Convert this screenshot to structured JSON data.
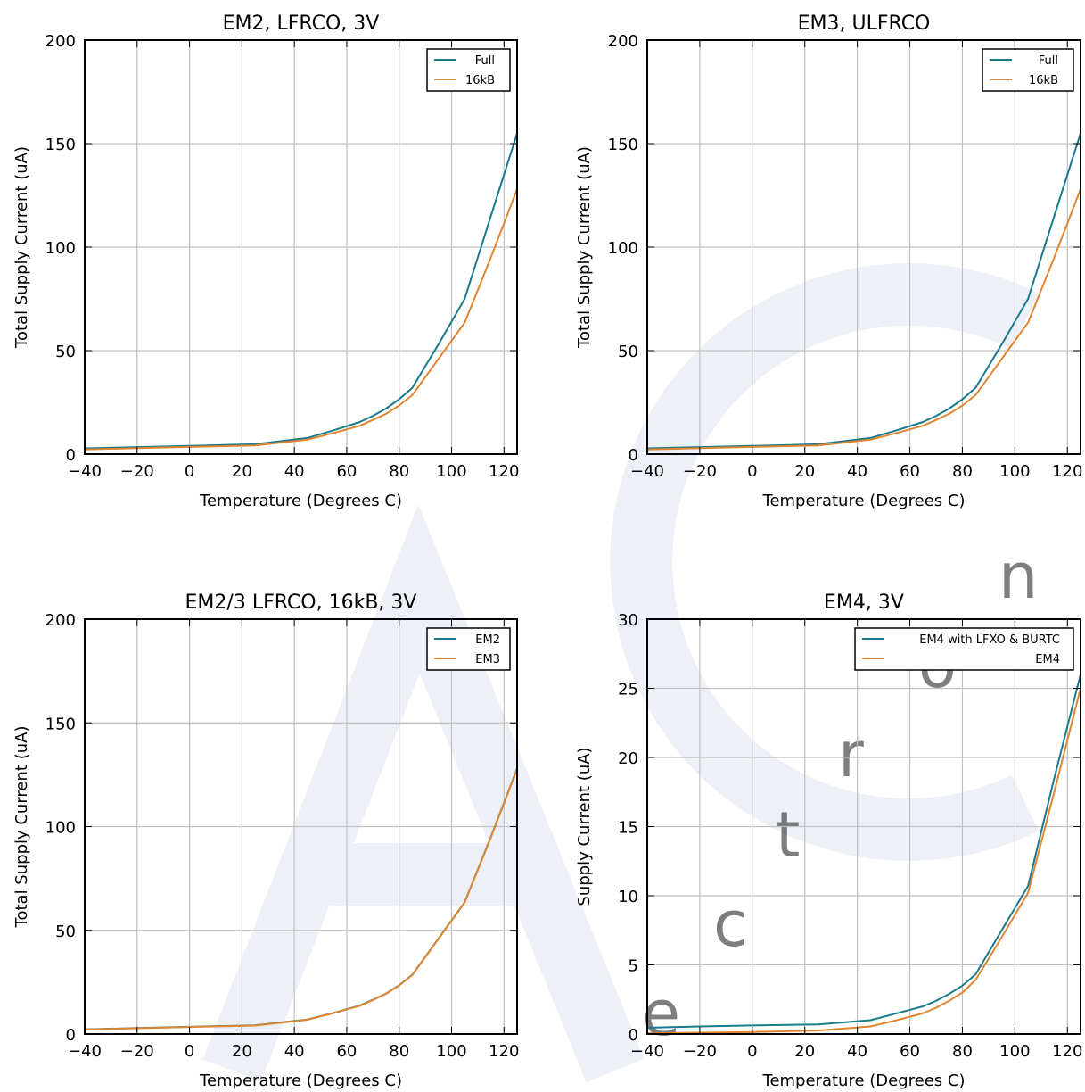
{
  "colors": {
    "series_a": "#1a7a8c",
    "series_b": "#e08530",
    "grid": "#bfbfbf",
    "axes": "#000000"
  },
  "chart_data": [
    {
      "type": "line",
      "title": "EM2, LFRCO, 3V",
      "xlabel": "Temperature (Degrees C)",
      "ylabel": "Total Supply Current (uA)",
      "xlim": [
        -40,
        125
      ],
      "ylim": [
        0,
        200
      ],
      "xticks": [
        -40,
        -20,
        0,
        20,
        40,
        60,
        80,
        100,
        120
      ],
      "yticks": [
        0,
        50,
        100,
        150,
        200
      ],
      "xtick_labels": [
        "−40",
        "−20",
        "0",
        "20",
        "40",
        "60",
        "80",
        "100",
        "120"
      ],
      "ytick_labels": [
        "0",
        "50",
        "100",
        "150",
        "200"
      ],
      "grid": true,
      "legend": "top-right",
      "series": [
        {
          "name": "Full",
          "color": "#1a7a8c",
          "x": [
            -40,
            -20,
            0,
            25,
            45,
            55,
            65,
            70,
            75,
            80,
            85,
            95,
            105,
            115,
            125
          ],
          "y": [
            2.8,
            3.4,
            4.0,
            4.8,
            7.8,
            11.5,
            15.5,
            18.5,
            22.0,
            26.5,
            32.0,
            53.0,
            75.0,
            115.0,
            155.0
          ]
        },
        {
          "name": "16kB",
          "color": "#e08530",
          "x": [
            -40,
            -20,
            0,
            25,
            45,
            55,
            65,
            70,
            75,
            80,
            85,
            95,
            105,
            115,
            125
          ],
          "y": [
            2.3,
            2.9,
            3.5,
            4.2,
            7.0,
            10.2,
            13.7,
            16.5,
            19.5,
            23.5,
            28.5,
            46.0,
            63.5,
            95.0,
            128.0
          ]
        }
      ]
    },
    {
      "type": "line",
      "title": "EM3, ULFRCO",
      "xlabel": "Temperature (Degrees C)",
      "ylabel": "Total Supply Current (uA)",
      "xlim": [
        -40,
        125
      ],
      "ylim": [
        0,
        200
      ],
      "xticks": [
        -40,
        -20,
        0,
        20,
        40,
        60,
        80,
        100,
        120
      ],
      "yticks": [
        0,
        50,
        100,
        150,
        200
      ],
      "xtick_labels": [
        "−40",
        "−20",
        "0",
        "20",
        "40",
        "60",
        "80",
        "100",
        "120"
      ],
      "ytick_labels": [
        "0",
        "50",
        "100",
        "150",
        "200"
      ],
      "grid": true,
      "legend": "top-right",
      "series": [
        {
          "name": "Full",
          "color": "#1a7a8c",
          "x": [
            -40,
            -20,
            0,
            25,
            45,
            55,
            65,
            70,
            75,
            80,
            85,
            95,
            105,
            115,
            125
          ],
          "y": [
            2.8,
            3.4,
            4.0,
            4.8,
            7.8,
            11.5,
            15.5,
            18.5,
            22.0,
            26.5,
            32.0,
            53.0,
            75.0,
            115.0,
            155.0
          ]
        },
        {
          "name": "16kB",
          "color": "#e08530",
          "x": [
            -40,
            -20,
            0,
            25,
            45,
            55,
            65,
            70,
            75,
            80,
            85,
            95,
            105,
            115,
            125
          ],
          "y": [
            2.3,
            2.9,
            3.5,
            4.2,
            7.0,
            10.2,
            13.7,
            16.5,
            19.5,
            23.5,
            28.5,
            46.0,
            63.5,
            95.0,
            128.0
          ]
        }
      ]
    },
    {
      "type": "line",
      "title": "EM2/3 LFRCO, 16kB, 3V",
      "xlabel": "Temperature (Degrees C)",
      "ylabel": "Total Supply Current (uA)",
      "xlim": [
        -40,
        125
      ],
      "ylim": [
        0,
        200
      ],
      "xticks": [
        -40,
        -20,
        0,
        20,
        40,
        60,
        80,
        100,
        120
      ],
      "yticks": [
        0,
        50,
        100,
        150,
        200
      ],
      "xtick_labels": [
        "−40",
        "−20",
        "0",
        "20",
        "40",
        "60",
        "80",
        "100",
        "120"
      ],
      "ytick_labels": [
        "0",
        "50",
        "100",
        "150",
        "200"
      ],
      "grid": true,
      "legend": "top-right",
      "series": [
        {
          "name": "EM2",
          "color": "#1a7a8c",
          "x": [
            -40,
            -20,
            0,
            25,
            45,
            55,
            65,
            70,
            75,
            80,
            85,
            95,
            105,
            115,
            125
          ],
          "y": [
            2.3,
            2.9,
            3.5,
            4.2,
            7.0,
            10.2,
            13.7,
            16.5,
            19.5,
            23.5,
            28.5,
            46.0,
            63.5,
            95.0,
            128.0
          ]
        },
        {
          "name": "EM3",
          "color": "#e08530",
          "x": [
            -40,
            -20,
            0,
            25,
            45,
            55,
            65,
            70,
            75,
            80,
            85,
            95,
            105,
            115,
            125
          ],
          "y": [
            2.2,
            2.8,
            3.4,
            4.1,
            6.9,
            10.1,
            13.6,
            16.4,
            19.4,
            23.4,
            28.4,
            45.9,
            63.4,
            94.8,
            127.8
          ]
        }
      ]
    },
    {
      "type": "line",
      "title": "EM4, 3V",
      "xlabel": "Temperature (Degrees C)",
      "ylabel": "Supply Current (uA)",
      "xlim": [
        -40,
        125
      ],
      "ylim": [
        0,
        30
      ],
      "xticks": [
        -40,
        -20,
        0,
        20,
        40,
        60,
        80,
        100,
        120
      ],
      "yticks": [
        0,
        5,
        10,
        15,
        20,
        25,
        30
      ],
      "xtick_labels": [
        "−40",
        "−20",
        "0",
        "20",
        "40",
        "60",
        "80",
        "100",
        "120"
      ],
      "ytick_labels": [
        "0",
        "5",
        "10",
        "15",
        "20",
        "25",
        "30"
      ],
      "grid": true,
      "legend": "top-right",
      "series": [
        {
          "name": "EM4 with LFXO & BURTC",
          "color": "#1a7a8c",
          "x": [
            -40,
            -20,
            0,
            25,
            45,
            55,
            65,
            70,
            75,
            80,
            85,
            95,
            105,
            115,
            125
          ],
          "y": [
            0.45,
            0.55,
            0.62,
            0.7,
            1.0,
            1.5,
            2.0,
            2.4,
            2.9,
            3.5,
            4.3,
            7.5,
            10.7,
            18.5,
            26.0
          ]
        },
        {
          "name": "EM4",
          "color": "#e08530",
          "x": [
            -40,
            -20,
            0,
            25,
            45,
            55,
            65,
            70,
            75,
            80,
            85,
            95,
            105,
            115,
            125
          ],
          "y": [
            0.05,
            0.1,
            0.15,
            0.25,
            0.55,
            1.0,
            1.5,
            1.9,
            2.4,
            3.0,
            3.9,
            7.0,
            10.2,
            17.5,
            25.0
          ]
        }
      ]
    }
  ]
}
